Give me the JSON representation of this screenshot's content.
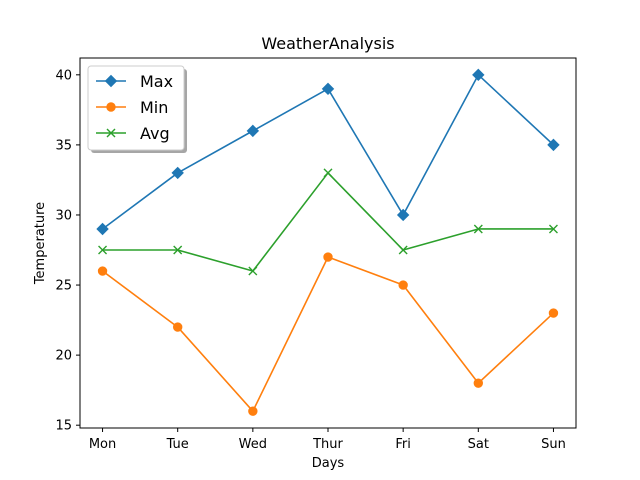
{
  "chart_data": {
    "type": "line",
    "title": "WeatherAnalysis",
    "xlabel": "Days",
    "ylabel": "Temperature",
    "categories": [
      "Mon",
      "Tue",
      "Wed",
      "Thur",
      "Fri",
      "Sat",
      "Sun"
    ],
    "ylim": [
      14.8,
      41.2
    ],
    "yticks": [
      15,
      20,
      25,
      30,
      35,
      40
    ],
    "grid": false,
    "legend_position": "top-left",
    "series": [
      {
        "name": "Max",
        "values": [
          29,
          33,
          36,
          39,
          30,
          40,
          35
        ],
        "color": "#1f77b4",
        "marker": "diamond"
      },
      {
        "name": "Min",
        "values": [
          26,
          22,
          16,
          27,
          25,
          18,
          23
        ],
        "color": "#ff7f0e",
        "marker": "circle"
      },
      {
        "name": "Avg",
        "values": [
          27.5,
          27.5,
          26,
          33,
          27.5,
          29,
          29
        ],
        "color": "#2ca02c",
        "marker": "x"
      }
    ]
  }
}
